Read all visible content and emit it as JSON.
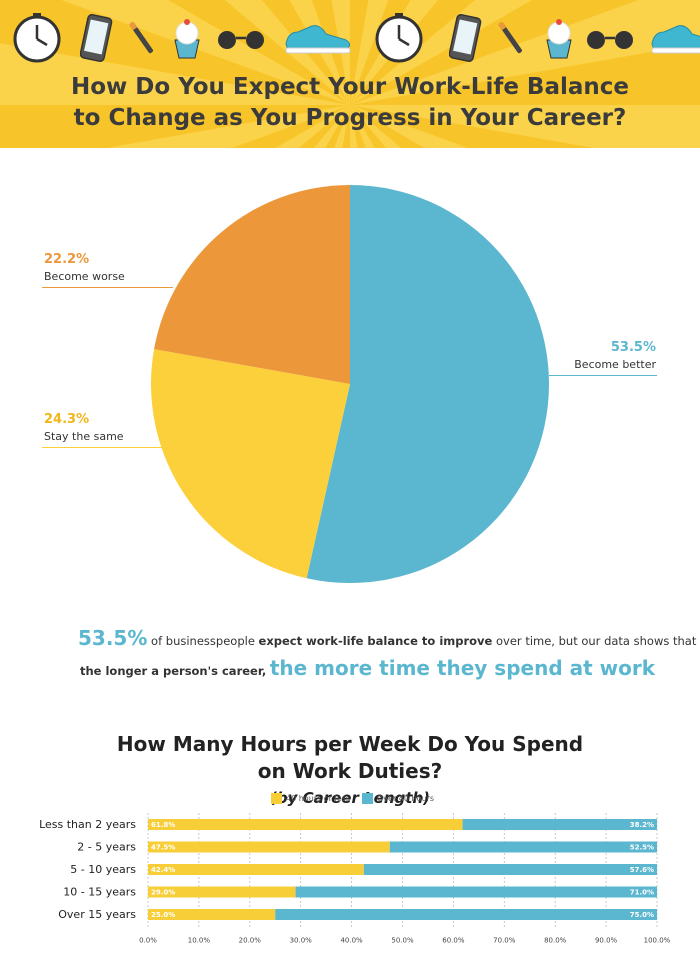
{
  "header": {
    "title_line1": "How Do You Expect Your Work-Life Balance",
    "title_line2": "to Change as You Progress in Your Career?",
    "icons": [
      "clock-icon",
      "smartphone-icon",
      "pen-icon",
      "cupcake-icon",
      "sunglasses-icon",
      "sneaker-icon",
      "clock-icon",
      "smartphone-icon",
      "pen-icon",
      "cupcake-icon",
      "sunglasses-icon",
      "sneaker-icon"
    ]
  },
  "colors": {
    "yellow": "#f7c52a",
    "orange": "#ec973a",
    "pie_yellow": "#fcd03a",
    "teal": "#5bb7cf",
    "bar_yellow": "#f8ce38",
    "bar_teal": "#5bb6cf",
    "title_gray": "#3b3b3b"
  },
  "statement": {
    "pct": "53.5%",
    "text1a": "of businesspeople",
    "text1b": "expect work-life balance to improve",
    "text1c": "over time, but our data shows that",
    "text2a": "the longer a person's career,",
    "text2b": "the more time they spend at work"
  },
  "bar_title": {
    "line1": "How Many Hours per Week Do You Spend",
    "line2": "on Work Duties?",
    "line2_sub": "(by Career Length)"
  },
  "chart_data": [
    {
      "type": "pie",
      "title": "How Do You Expect Your Work-Life Balance to Change as You Progress in Your Career?",
      "slices": [
        {
          "label": "Become better",
          "value": 53.5,
          "value_label": "53.5%",
          "color": "#5bb7cf"
        },
        {
          "label": "Stay the same",
          "value": 24.3,
          "value_label": "24.3%",
          "color": "#fcd03a"
        },
        {
          "label": "Become worse",
          "value": 22.2,
          "value_label": "22.2%",
          "color": "#ec973a"
        }
      ]
    },
    {
      "type": "bar",
      "orientation": "horizontal",
      "stacked": true,
      "title": "How Many Hours per Week Do You Spend on Work Duties? (by Career Length)",
      "categories": [
        "Less than 2 years",
        "2 - 5 years",
        "5 - 10 years",
        "10 - 15 years",
        "Over 15 years"
      ],
      "series": [
        {
          "name": "40 hours or less",
          "color": "#f8ce38",
          "values": [
            61.8,
            47.5,
            42.4,
            29.0,
            25.0
          ],
          "labels": [
            "61.8%",
            "47.5%",
            "42.4%",
            "29.0%",
            "25.0%"
          ]
        },
        {
          "name": "Over 40 hours",
          "color": "#5bb6cf",
          "values": [
            38.2,
            52.5,
            57.6,
            71.0,
            75.0
          ],
          "labels": [
            "38.2%",
            "52.5%",
            "57.6%",
            "71.0%",
            "75.0%"
          ]
        }
      ],
      "xlim": [
        0,
        100
      ],
      "xticks": [
        "0.0%",
        "10.0%",
        "20.0%",
        "30.0%",
        "40.0%",
        "50.0%",
        "60.0%",
        "70.0%",
        "80.0%",
        "90.0%",
        "100.0%"
      ],
      "grid": "vertical-dashed",
      "legend": "top-center"
    }
  ]
}
